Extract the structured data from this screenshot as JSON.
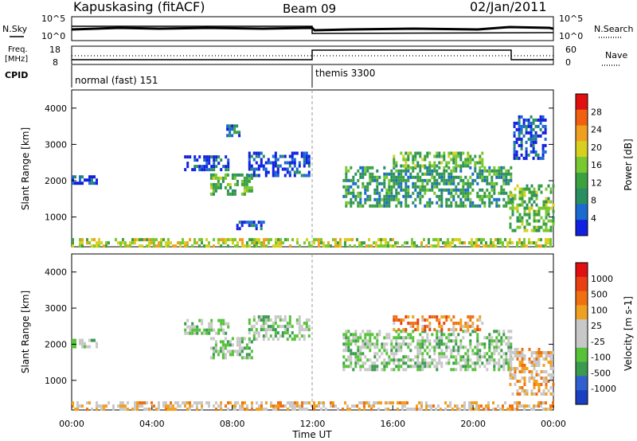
{
  "header": {
    "station": "Kapuskasing (fitACF)",
    "beam": "Beam 09",
    "date": "02/Jan/2011"
  },
  "top_panels": {
    "nsky_label": "N.Sky",
    "nsky_ticks": [
      "10^5",
      "10^0"
    ],
    "nsearch_label": "N.Search",
    "nsearch_ticks": [
      "10^5",
      "10^0"
    ],
    "freq_label_1": "Freq.",
    "freq_label_2": "[MHz]",
    "freq_ticks": [
      "18",
      "8"
    ],
    "nave_label": "Nave",
    "nave_ticks": [
      "60",
      "0"
    ],
    "cpid_label": "CPID",
    "cpid_segments": [
      "normal (fast) 151",
      "themis 3300"
    ]
  },
  "colors": {
    "power_scale": [
      "#1020e0",
      "#1a6ad0",
      "#2a8f60",
      "#3aa040",
      "#78c830",
      "#d8d020",
      "#f0a020",
      "#f06010",
      "#e01010"
    ],
    "velocity_scale": [
      "#1a3fc0",
      "#3060d0",
      "#3a9a50",
      "#56c23a",
      "#c8c8c8",
      "#c8c8c8",
      "#f0a020",
      "#f07010",
      "#e84010",
      "#e01010"
    ]
  },
  "chart_data": [
    {
      "type": "heatmap",
      "name": "Power",
      "ylabel": "Slant Range [km]",
      "yticks": [
        1000,
        2000,
        3000,
        4000
      ],
      "ylim": [
        180,
        4500
      ],
      "xlim": [
        0,
        24
      ],
      "colorbar_label": "Power [dB]",
      "colorbar_ticks": [
        "28",
        "24",
        "20",
        "16",
        "12",
        "8",
        "4"
      ],
      "blobs": [
        {
          "t0": 0.0,
          "t1": 1.2,
          "r0": 1900,
          "r1": 2150,
          "lvl": 1
        },
        {
          "t0": 5.6,
          "t1": 7.8,
          "r0": 2300,
          "r1": 2700,
          "lvl": 1
        },
        {
          "t0": 6.9,
          "t1": 9.0,
          "r0": 1650,
          "r1": 2200,
          "lvl": 4
        },
        {
          "t0": 8.8,
          "t1": 11.8,
          "r0": 2100,
          "r1": 2800,
          "lvl": 1
        },
        {
          "t0": 7.7,
          "t1": 8.4,
          "r0": 3200,
          "r1": 3550,
          "lvl": 2
        },
        {
          "t0": 8.2,
          "t1": 9.6,
          "r0": 700,
          "r1": 900,
          "lvl": 1
        },
        {
          "t0": 13.5,
          "t1": 21.9,
          "r0": 1300,
          "r1": 2400,
          "lvl": 3
        },
        {
          "t0": 16.0,
          "t1": 20.5,
          "r0": 2400,
          "r1": 2800,
          "lvl": 4
        },
        {
          "t0": 21.8,
          "t1": 24.0,
          "r0": 600,
          "r1": 1900,
          "lvl": 4
        },
        {
          "t0": 22.0,
          "t1": 23.6,
          "r0": 2600,
          "r1": 3800,
          "lvl": 1
        },
        {
          "t0": 0.0,
          "t1": 24.0,
          "r0": 180,
          "r1": 420,
          "lvl": 5
        }
      ]
    },
    {
      "type": "heatmap",
      "name": "Velocity",
      "ylabel": "Slant Range [km]",
      "yticks": [
        1000,
        2000,
        3000,
        4000
      ],
      "ylim": [
        180,
        4500
      ],
      "xlim": [
        0,
        24
      ],
      "xlabel": "Time UT",
      "xticks": [
        "00:00",
        "04:00",
        "08:00",
        "12:00",
        "16:00",
        "20:00",
        "00:00"
      ],
      "colorbar_label": "Velocity [m s-1]",
      "colorbar_ticks": [
        "1000",
        "500",
        "100",
        "25",
        "-25",
        "-100",
        "-500",
        "-1000"
      ],
      "blobs": [
        {
          "t0": 0.0,
          "t1": 1.2,
          "r0": 1900,
          "r1": 2150,
          "lvl": 4
        },
        {
          "t0": 5.6,
          "t1": 7.8,
          "r0": 2300,
          "r1": 2700,
          "lvl": 4
        },
        {
          "t0": 6.9,
          "t1": 9.0,
          "r0": 1650,
          "r1": 2200,
          "lvl": 4
        },
        {
          "t0": 8.8,
          "t1": 11.8,
          "r0": 2100,
          "r1": 2800,
          "lvl": 4
        },
        {
          "t0": 13.5,
          "t1": 21.9,
          "r0": 1300,
          "r1": 2400,
          "lvl": 4
        },
        {
          "t0": 16.0,
          "t1": 20.5,
          "r0": 2400,
          "r1": 2800,
          "lvl": 7
        },
        {
          "t0": 21.8,
          "t1": 24.0,
          "r0": 600,
          "r1": 1900,
          "lvl": 6
        },
        {
          "t0": 0.0,
          "t1": 24.0,
          "r0": 180,
          "r1": 420,
          "lvl": 6
        }
      ]
    }
  ]
}
